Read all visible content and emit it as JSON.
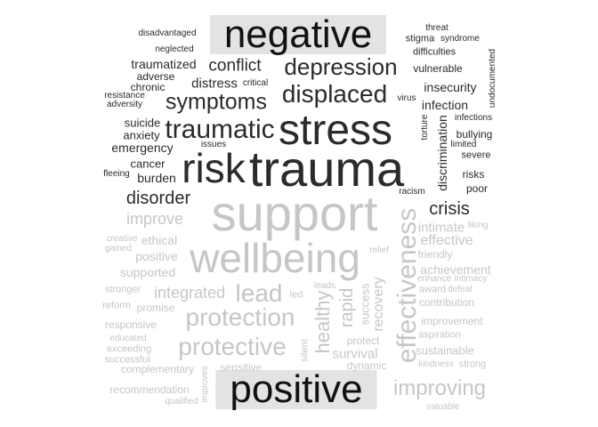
{
  "legend": {
    "negative": "negative",
    "positive": "positive"
  },
  "colors": {
    "negative": "#2b2b2b",
    "positive": "#c6c6c6",
    "highlight": "#e3e3e3"
  },
  "negative_words": [
    "disadvantaged",
    "neglected",
    "traumatized",
    "adverse",
    "chronic",
    "resistance",
    "adversity",
    "conflict",
    "distress",
    "critical",
    "symptoms",
    "depression",
    "displaced",
    "threat",
    "stigma",
    "syndrome",
    "difficulties",
    "vulnerable",
    "undocumented",
    "insecurity",
    "virus",
    "infection",
    "infections",
    "torture",
    "bullying",
    "limited",
    "severe",
    "discrimination",
    "risks",
    "poor",
    "racism",
    "traumatic",
    "stress",
    "suicide",
    "anxiety",
    "emergency",
    "issues",
    "cancer",
    "fleeing",
    "burden",
    "risk",
    "trauma",
    "disorder",
    "crisis"
  ],
  "positive_words": [
    "support",
    "improve",
    "intimate",
    "liking",
    "effective",
    "friendly",
    "creative",
    "gained",
    "ethical",
    "positive",
    "wellbeing",
    "effectiveness",
    "supported",
    "achievement",
    "enhance",
    "intimacy",
    "stronger",
    "integrated",
    "lead",
    "led",
    "leads",
    "relief",
    "award",
    "defeat",
    "reform",
    "promise",
    "contribution",
    "protection",
    "responsive",
    "healthy",
    "rapid",
    "success",
    "recovery",
    "improvement",
    "educated",
    "aspiration",
    "exceeding",
    "protective",
    "silent",
    "protect",
    "sustainable",
    "successful",
    "survival",
    "complementary",
    "improves",
    "sensitive",
    "dynamic",
    "kindness",
    "strong",
    "recommendation",
    "improving",
    "qualified",
    "valuable"
  ]
}
